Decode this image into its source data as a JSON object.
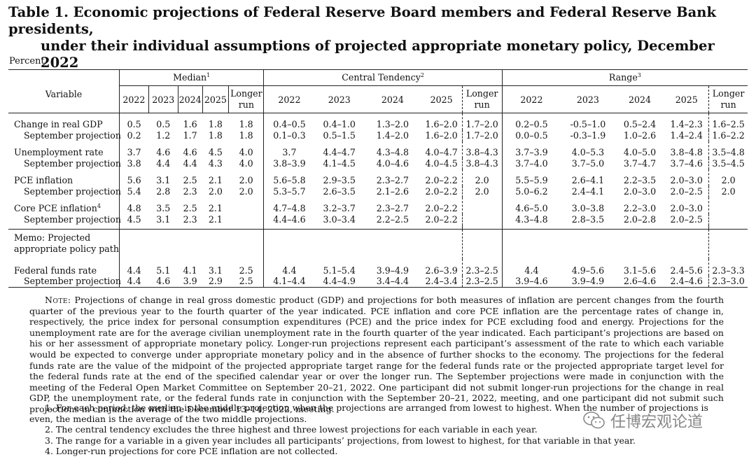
{
  "title": {
    "line1": "Table 1.  Economic projections of Federal Reserve Board members and Federal Reserve Bank presidents,",
    "line2": "under their individual assumptions of projected appropriate monetary policy, December 2022"
  },
  "units": "Percent",
  "header": {
    "variable": "Variable",
    "median": "Median",
    "median_sup": "1",
    "central": "Central Tendency",
    "central_sup": "2",
    "range": "Range",
    "range_sup": "3",
    "years": [
      "2022",
      "2023",
      "2024",
      "2025"
    ],
    "longer_1": "Longer",
    "longer_2": "run"
  },
  "rows": [
    {
      "label": "Change in real GDP",
      "med": [
        "0.5",
        "0.5",
        "1.6",
        "1.8",
        "1.8"
      ],
      "ct": [
        "0.4–0.5",
        "0.4–1.0",
        "1.3–2.0",
        "1.6–2.0",
        "1.7–2.0"
      ],
      "rg": [
        "0.2–0.5",
        "-0.5–1.0",
        "0.5–2.4",
        "1.4–2.3",
        "1.6–2.5"
      ]
    },
    {
      "label": "September projection",
      "med": [
        "0.2",
        "1.2",
        "1.7",
        "1.8",
        "1.8"
      ],
      "ct": [
        "0.1–0.3",
        "0.5–1.5",
        "1.4–2.0",
        "1.6–2.0",
        "1.7–2.0"
      ],
      "rg": [
        "0.0–0.5",
        "-0.3–1.9",
        "1.0–2.6",
        "1.4–2.4",
        "1.6–2.2"
      ]
    },
    {
      "label": "Unemployment rate",
      "med": [
        "3.7",
        "4.6",
        "4.6",
        "4.5",
        "4.0"
      ],
      "ct": [
        "3.7",
        "4.4–4.7",
        "4.3–4.8",
        "4.0–4.7",
        "3.8–4.3"
      ],
      "rg": [
        "3.7–3.9",
        "4.0–5.3",
        "4.0–5.0",
        "3.8–4.8",
        "3.5–4.8"
      ]
    },
    {
      "label": "September projection",
      "med": [
        "3.8",
        "4.4",
        "4.4",
        "4.3",
        "4.0"
      ],
      "ct": [
        "3.8–3.9",
        "4.1–4.5",
        "4.0–4.6",
        "4.0–4.5",
        "3.8–4.3"
      ],
      "rg": [
        "3.7–4.0",
        "3.7–5.0",
        "3.7–4.7",
        "3.7–4.6",
        "3.5–4.5"
      ]
    },
    {
      "label": "PCE inflation",
      "med": [
        "5.6",
        "3.1",
        "2.5",
        "2.1",
        "2.0"
      ],
      "ct": [
        "5.6–5.8",
        "2.9–3.5",
        "2.3–2.7",
        "2.0–2.2",
        "2.0"
      ],
      "rg": [
        "5.5–5.9",
        "2.6–4.1",
        "2.2–3.5",
        "2.0–3.0",
        "2.0"
      ]
    },
    {
      "label": "September projection",
      "med": [
        "5.4",
        "2.8",
        "2.3",
        "2.0",
        "2.0"
      ],
      "ct": [
        "5.3–5.7",
        "2.6–3.5",
        "2.1–2.6",
        "2.0–2.2",
        "2.0"
      ],
      "rg": [
        "5.0–6.2",
        "2.4–4.1",
        "2.0–3.0",
        "2.0–2.5",
        "2.0"
      ]
    },
    {
      "label": "Core PCE inflation",
      "sup": "4",
      "med": [
        "4.8",
        "3.5",
        "2.5",
        "2.1",
        ""
      ],
      "ct": [
        "4.7–4.8",
        "3.2–3.7",
        "2.3–2.7",
        "2.0–2.2",
        ""
      ],
      "rg": [
        "4.6–5.0",
        "3.0–3.8",
        "2.2–3.0",
        "2.0–3.0",
        ""
      ]
    },
    {
      "label": "September projection",
      "med": [
        "4.5",
        "3.1",
        "2.3",
        "2.1",
        ""
      ],
      "ct": [
        "4.4–4.6",
        "3.0–3.4",
        "2.2–2.5",
        "2.0–2.2",
        ""
      ],
      "rg": [
        "4.3–4.8",
        "2.8–3.5",
        "2.0–2.8",
        "2.0–2.5",
        ""
      ]
    },
    {
      "label": "Federal funds rate",
      "med": [
        "4.4",
        "5.1",
        "4.1",
        "3.1",
        "2.5"
      ],
      "ct": [
        "4.4",
        "5.1–5.4",
        "3.9–4.9",
        "2.6–3.9",
        "2.3–2.5"
      ],
      "rg": [
        "4.4",
        "4.9–5.6",
        "3.1–5.6",
        "2.4–5.6",
        "2.3–3.3"
      ]
    },
    {
      "label": "September projection",
      "med": [
        "4.4",
        "4.6",
        "3.9",
        "2.9",
        "2.5"
      ],
      "ct": [
        "4.1–4.4",
        "4.4–4.9",
        "3.4–4.4",
        "2.4–3.4",
        "2.3–2.5"
      ],
      "rg": [
        "3.9–4.6",
        "3.9–4.9",
        "2.6–4.6",
        "2.4–4.6",
        "2.3–3.0"
      ]
    }
  ],
  "memo": {
    "line1": "Memo: Projected",
    "line2": "appropriate policy path"
  },
  "note": {
    "lead": "Note:",
    "text": " Projections of change in real gross domestic product (GDP) and projections for both measures of inflation are percent changes from the fourth quarter of the previous year to the fourth quarter of the year indicated. PCE inflation and core PCE inflation are the percentage rates of change in, respectively, the price index for personal consumption expenditures (PCE) and the price index for PCE excluding food and energy. Projections for the unemployment rate are for the average civilian unemployment rate in the fourth quarter of the year indicated. Each participant’s projections are based on his or her assessment of appropriate monetary policy. Longer-run projections represent each participant’s assessment of the rate to which each variable would be expected to converge under appropriate monetary policy and in the absence of further shocks to the economy. The projections for the federal funds rate are the value of the midpoint of the projected appropriate target range for the federal funds rate or the projected appropriate target level for the federal funds rate at the end of the specified calendar year or over the longer run. The September projections were made in conjunction with the meeting of the Federal Open Market Committee on September 20–21, 2022. One participant did not submit longer-run projections for the change in real GDP, the unemployment rate, or the federal funds rate in conjunction with the September 20–21, 2022, meeting, and one participant did not submit such projections in conjunction with the December 13–14, 2022, meeting."
  },
  "footnotes": [
    "1. For each period, the median is the middle projection when the projections are arranged from lowest to highest. When the number of projections is even, the median is the average of the two middle projections.",
    "2. The central tendency excludes the three highest and three lowest projections for each variable in each year.",
    "3. The range for a variable in a given year includes all participants’ projections, from lowest to highest, for that variable in that year.",
    "4. Longer-run projections for core PCE inflation are not collected."
  ],
  "watermark": "任博宏观论道",
  "watermark_icon": "wechat-icon"
}
